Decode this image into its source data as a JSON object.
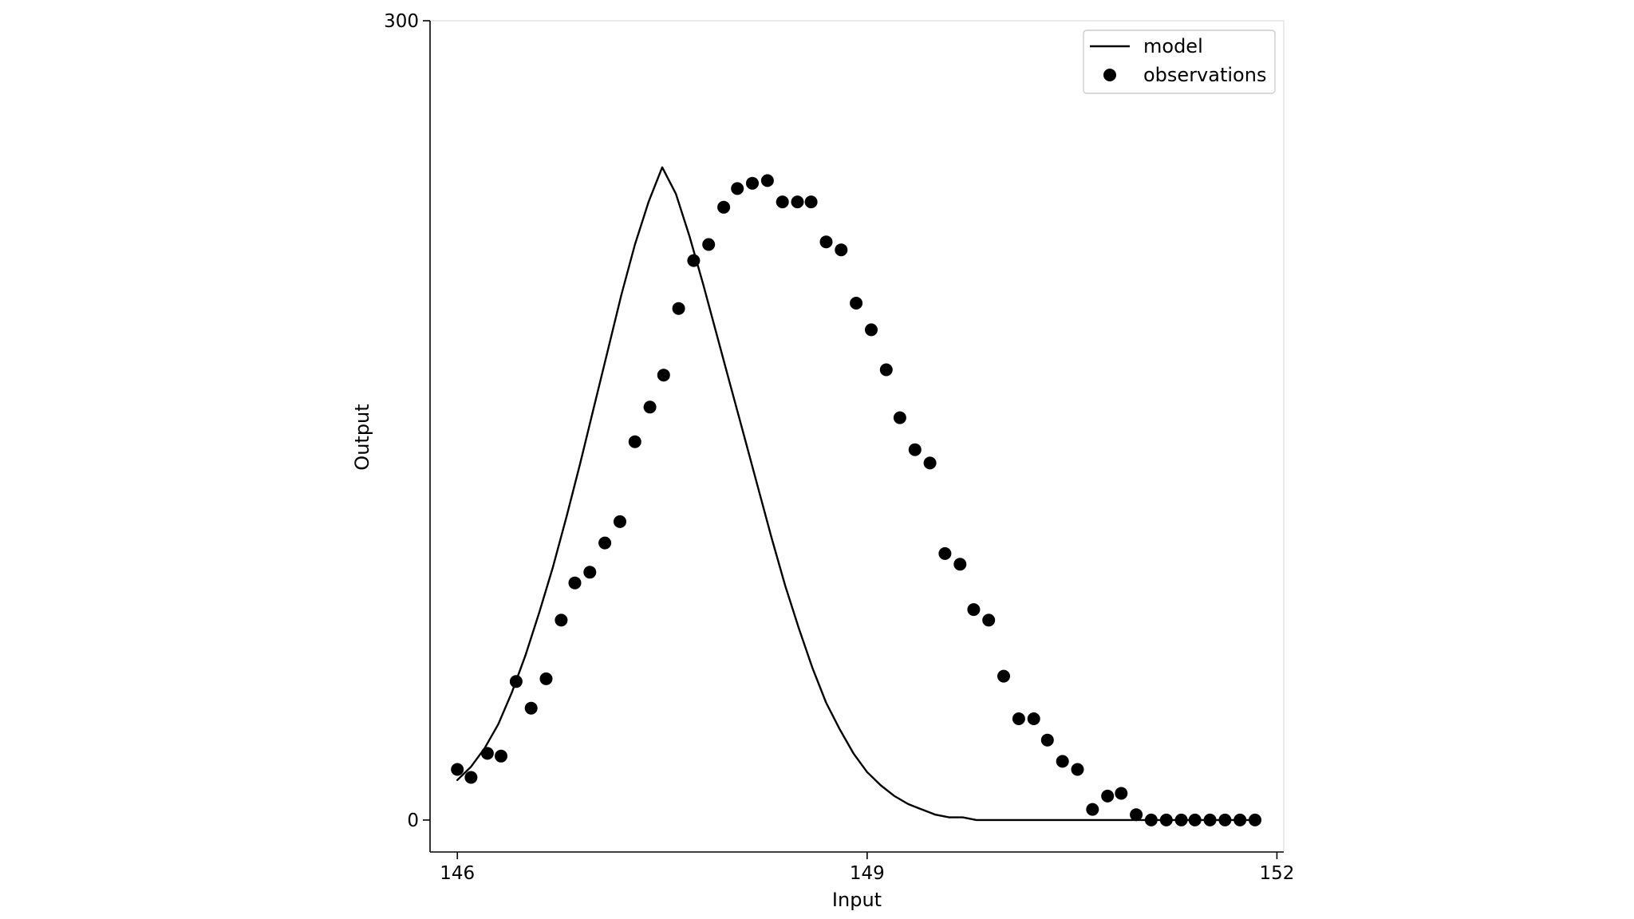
{
  "chart_data": {
    "type": "scatter",
    "title": "",
    "xlabel": "Input",
    "ylabel": "Output",
    "xlim": [
      145.8,
      152.05
    ],
    "ylim": [
      -12,
      300
    ],
    "x_ticks": [
      146,
      149,
      152
    ],
    "x_tick_labels": [
      "146",
      "149",
      "152"
    ],
    "y_ticks": [
      0,
      300
    ],
    "y_tick_labels": [
      "0",
      "300"
    ],
    "grid": false,
    "legend_position": "top-right",
    "legend": [
      "model",
      "observations"
    ],
    "colors": {
      "model": "#000000",
      "observations": "#000000",
      "frame": "#000000",
      "light_frame": "#dddddd"
    },
    "series": [
      {
        "name": "model",
        "kind": "line",
        "x": [
          146.0,
          146.1,
          146.2,
          146.3,
          146.4,
          146.5,
          146.6,
          146.7,
          146.8,
          146.9,
          147.0,
          147.1,
          147.2,
          147.3,
          147.4,
          147.5,
          147.6,
          147.7,
          147.8,
          147.9,
          148.0,
          148.1,
          148.2,
          148.3,
          148.4,
          148.5,
          148.6,
          148.7,
          148.8,
          148.9,
          149.0,
          149.1,
          149.2,
          149.3,
          149.4,
          149.5,
          149.6,
          149.7,
          149.8,
          149.9,
          150.0,
          150.1,
          150.2,
          150.3,
          150.4,
          150.5,
          150.6,
          150.7,
          150.8,
          150.9,
          151.0,
          151.1,
          151.2,
          151.3,
          151.4,
          151.5,
          151.6,
          151.7,
          151.8
        ],
        "y": [
          15,
          20,
          27,
          36,
          48,
          62,
          78,
          95,
          114,
          134,
          155,
          176,
          197,
          216,
          232,
          245,
          235,
          219,
          201,
          182,
          163,
          144,
          125,
          106,
          88,
          72,
          57,
          44,
          34,
          25,
          18,
          13,
          9,
          6,
          4,
          2,
          1,
          1,
          0,
          0,
          0,
          0,
          0,
          0,
          0,
          0,
          0,
          0,
          0,
          0,
          0,
          0,
          0,
          0,
          0,
          0,
          0,
          0,
          0
        ]
      },
      {
        "name": "observations",
        "kind": "scatter",
        "x": [
          146.0,
          146.1,
          146.22,
          146.32,
          146.43,
          146.54,
          146.65,
          146.76,
          146.86,
          146.97,
          147.08,
          147.19,
          147.3,
          147.41,
          147.51,
          147.62,
          147.73,
          147.84,
          147.95,
          148.05,
          148.16,
          148.27,
          148.38,
          148.49,
          148.59,
          148.7,
          148.81,
          148.92,
          149.03,
          149.14,
          149.24,
          149.35,
          149.46,
          149.57,
          149.68,
          149.78,
          149.89,
          150.0,
          150.11,
          150.22,
          150.32,
          150.43,
          150.54,
          150.65,
          150.76,
          150.86,
          150.97,
          151.08,
          151.19,
          151.3,
          151.4,
          151.51,
          151.62,
          151.73,
          151.84
        ],
        "y": [
          19,
          16,
          25,
          24,
          52,
          42,
          53,
          75,
          89,
          93,
          104,
          112,
          142,
          155,
          167,
          192,
          210,
          216,
          230,
          237,
          239,
          240,
          232,
          232,
          232,
          217,
          214,
          194,
          184,
          169,
          151,
          139,
          134,
          100,
          96,
          79,
          75,
          54,
          38,
          38,
          30,
          22,
          19,
          4,
          9,
          10,
          2,
          0,
          0,
          0,
          0,
          0,
          0,
          0,
          0
        ]
      }
    ]
  }
}
